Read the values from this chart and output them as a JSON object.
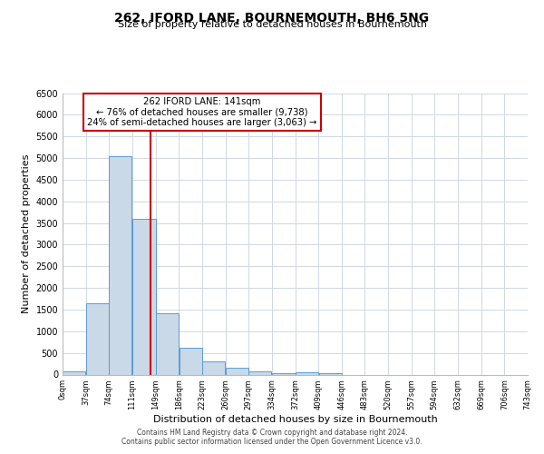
{
  "title": "262, IFORD LANE, BOURNEMOUTH, BH6 5NG",
  "subtitle": "Size of property relative to detached houses in Bournemouth",
  "xlabel": "Distribution of detached houses by size in Bournemouth",
  "ylabel": "Number of detached properties",
  "bin_edges": [
    0,
    37,
    74,
    111,
    149,
    186,
    223,
    260,
    297,
    334,
    372,
    409,
    446,
    483,
    520,
    557,
    594,
    632,
    669,
    706,
    743
  ],
  "bar_heights": [
    75,
    1650,
    5050,
    3600,
    1420,
    610,
    300,
    150,
    75,
    25,
    50,
    25,
    0,
    0,
    0,
    0,
    0,
    0,
    0,
    0
  ],
  "bar_color": "#c9d9e8",
  "bar_edge_color": "#5b9bd5",
  "property_line_x": 141,
  "property_line_color": "#cc0000",
  "annotation_title": "262 IFORD LANE: 141sqm",
  "annotation_line1": "← 76% of detached houses are smaller (9,738)",
  "annotation_line2": "24% of semi-detached houses are larger (3,063) →",
  "annotation_box_color": "#ffffff",
  "annotation_box_edge_color": "#cc0000",
  "ylim": [
    0,
    6500
  ],
  "yticks": [
    0,
    500,
    1000,
    1500,
    2000,
    2500,
    3000,
    3500,
    4000,
    4500,
    5000,
    5500,
    6000,
    6500
  ],
  "footer1": "Contains HM Land Registry data © Crown copyright and database right 2024.",
  "footer2": "Contains public sector information licensed under the Open Government Licence v3.0.",
  "background_color": "#ffffff",
  "grid_color": "#d0d8e4"
}
